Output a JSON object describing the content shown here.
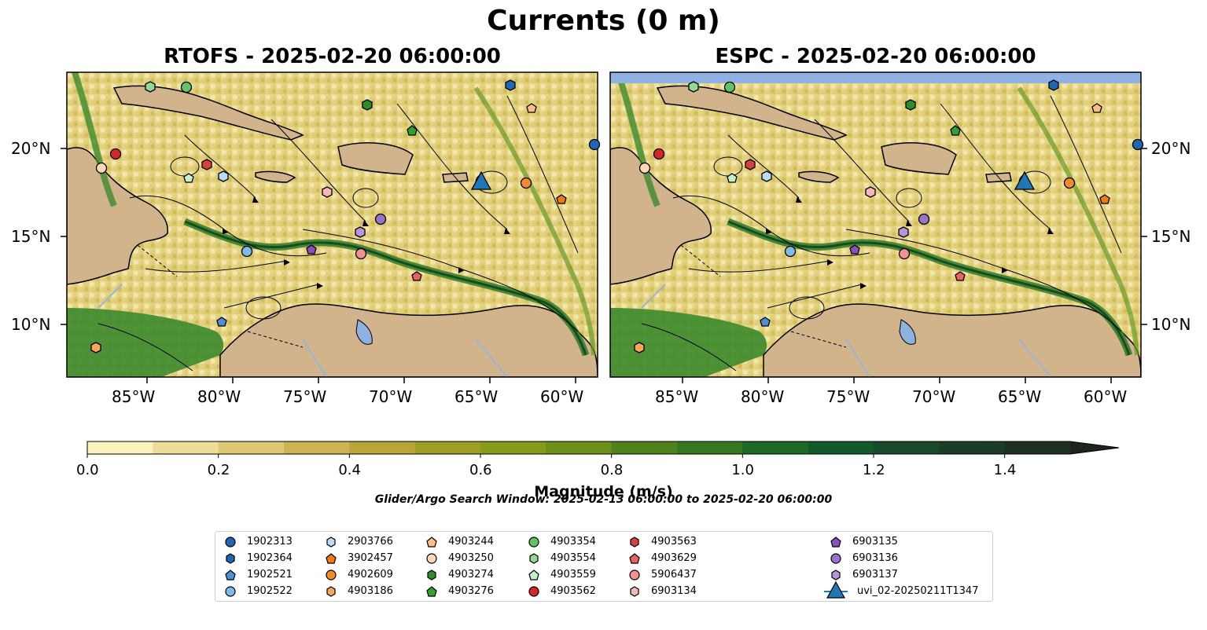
{
  "title": "Currents (0 m)",
  "panels": [
    {
      "title": "RTOFS - 2025-02-20 06:00:00"
    },
    {
      "title": "ESPC - 2025-02-20 06:00:00"
    }
  ],
  "lon_ticks": [
    "85°W",
    "80°W",
    "75°W",
    "70°W",
    "65°W",
    "60°W"
  ],
  "lat_ticks": [
    "20°N",
    "15°N",
    "10°N"
  ],
  "colorbar": {
    "title": "Magnitude (m/s)",
    "ticks": [
      "0.0",
      "0.2",
      "0.4",
      "0.6",
      "0.8",
      "1.0",
      "1.2",
      "1.4"
    ],
    "colors": [
      "#fbf3bd",
      "#eedd98",
      "#dfc873",
      "#cdb452",
      "#b9a638",
      "#9f9d26",
      "#869a1c",
      "#6c8f1a",
      "#4f821c",
      "#357620",
      "#1c6a26",
      "#135a2a",
      "#174a2a",
      "#1b3d26",
      "#1d3120",
      "#1c251b"
    ]
  },
  "search_window": "Glider/Argo Search Window: 2025-02-13 06:00:00 to 2025-02-20 06:00:00",
  "legend": [
    {
      "label": "1902313",
      "color": "#1f66b5",
      "shape": "circle"
    },
    {
      "label": "1902364",
      "color": "#1f66b5",
      "shape": "hexagon"
    },
    {
      "label": "1902521",
      "color": "#4d8fd6",
      "shape": "pentagon"
    },
    {
      "label": "1902522",
      "color": "#82b8e8",
      "shape": "circle"
    },
    {
      "label": "2903766",
      "color": "#b9dcf5",
      "shape": "hexagon"
    },
    {
      "label": "3902457",
      "color": "#f07a12",
      "shape": "pentagon"
    },
    {
      "label": "4902609",
      "color": "#f58b2a",
      "shape": "circle"
    },
    {
      "label": "4903186",
      "color": "#f7a65a",
      "shape": "hexagon"
    },
    {
      "label": "4903244",
      "color": "#f9bf87",
      "shape": "pentagon"
    },
    {
      "label": "4903250",
      "color": "#fbd9b6",
      "shape": "circle"
    },
    {
      "label": "4903274",
      "color": "#2e8b2e",
      "shape": "hexagon"
    },
    {
      "label": "4903276",
      "color": "#2ea32e",
      "shape": "pentagon"
    },
    {
      "label": "4903354",
      "color": "#63c363",
      "shape": "circle"
    },
    {
      "label": "4903554",
      "color": "#93d893",
      "shape": "hexagon"
    },
    {
      "label": "4903559",
      "color": "#c8f0c8",
      "shape": "pentagon"
    },
    {
      "label": "4903562",
      "color": "#d62728",
      "shape": "circle"
    },
    {
      "label": "4903563",
      "color": "#d94040",
      "shape": "hexagon"
    },
    {
      "label": "4903629",
      "color": "#e86060",
      "shape": "pentagon"
    },
    {
      "label": "5906437",
      "color": "#f39090",
      "shape": "circle"
    },
    {
      "label": "6903134",
      "color": "#f7b8b8",
      "shape": "hexagon"
    },
    {
      "label": "6903135",
      "color": "#8a4fc0",
      "shape": "pentagon"
    },
    {
      "label": "6903136",
      "color": "#9b72c9",
      "shape": "circle"
    },
    {
      "label": "6903137",
      "color": "#b695db",
      "shape": "hexagon"
    },
    {
      "label": "uvi_02-20250211T1347",
      "color": "#1f77b4",
      "shape": "triangle"
    }
  ]
}
